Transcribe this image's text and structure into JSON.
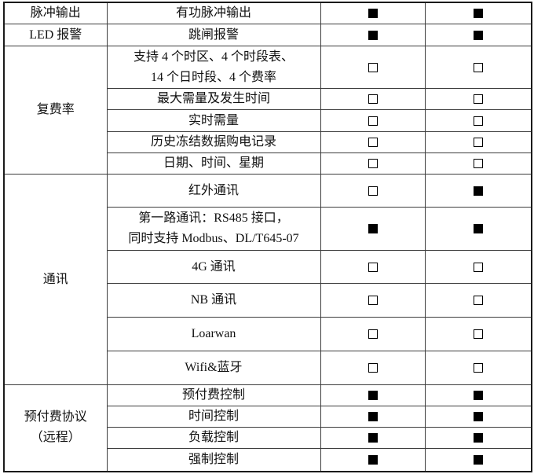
{
  "table": {
    "colors": {
      "border": "#3d3d3d",
      "outer_border": "#1a1a1a",
      "text": "#111111",
      "checkbox_fill": "#000000"
    },
    "sections": [
      {
        "category_lines": [
          "脉冲输出"
        ],
        "rows": [
          {
            "feature_lines": [
              "有功脉冲输出"
            ],
            "checks": [
              "filled",
              "filled"
            ]
          }
        ]
      },
      {
        "category_lines": [
          "LED 报警"
        ],
        "rows": [
          {
            "feature_lines": [
              "跳闸报警"
            ],
            "checks": [
              "filled",
              "filled"
            ]
          }
        ]
      },
      {
        "category_lines": [
          "复费率"
        ],
        "rows": [
          {
            "feature_lines": [
              "支持 4 个时区、4 个时段表、",
              "14 个日时段、4 个费率"
            ],
            "checks": [
              "empty",
              "empty"
            ]
          },
          {
            "feature_lines": [
              "最大需量及发生时间"
            ],
            "checks": [
              "empty",
              "empty"
            ]
          },
          {
            "feature_lines": [
              "实时需量"
            ],
            "checks": [
              "empty",
              "empty"
            ]
          },
          {
            "feature_lines": [
              "历史冻结数据购电记录"
            ],
            "checks": [
              "empty",
              "empty"
            ]
          },
          {
            "feature_lines": [
              "日期、时间、星期"
            ],
            "checks": [
              "empty",
              "empty"
            ]
          }
        ]
      },
      {
        "category_lines": [
          "通讯"
        ],
        "rows": [
          {
            "feature_lines": [
              "红外通讯"
            ],
            "checks": [
              "empty",
              "filled"
            ]
          },
          {
            "feature_lines": [
              "第一路通讯：RS485 接口，",
              "同时支持 Modbus、DL/T645-07"
            ],
            "checks": [
              "filled",
              "filled"
            ]
          },
          {
            "feature_lines": [
              "4G 通讯"
            ],
            "checks": [
              "empty",
              "empty"
            ]
          },
          {
            "feature_lines": [
              "NB 通讯"
            ],
            "checks": [
              "empty",
              "empty"
            ]
          },
          {
            "feature_lines": [
              "Loarwan"
            ],
            "checks": [
              "empty",
              "empty"
            ]
          },
          {
            "feature_lines": [
              "Wifi&蓝牙"
            ],
            "checks": [
              "empty",
              "empty"
            ]
          }
        ]
      },
      {
        "category_lines": [
          "预付费协议",
          "（远程）"
        ],
        "rows": [
          {
            "feature_lines": [
              "预付费控制"
            ],
            "checks": [
              "filled",
              "filled"
            ]
          },
          {
            "feature_lines": [
              "时间控制"
            ],
            "checks": [
              "filled",
              "filled"
            ]
          },
          {
            "feature_lines": [
              "负载控制"
            ],
            "checks": [
              "filled",
              "filled"
            ]
          },
          {
            "feature_lines": [
              "强制控制"
            ],
            "checks": [
              "filled",
              "filled"
            ]
          }
        ]
      }
    ]
  }
}
